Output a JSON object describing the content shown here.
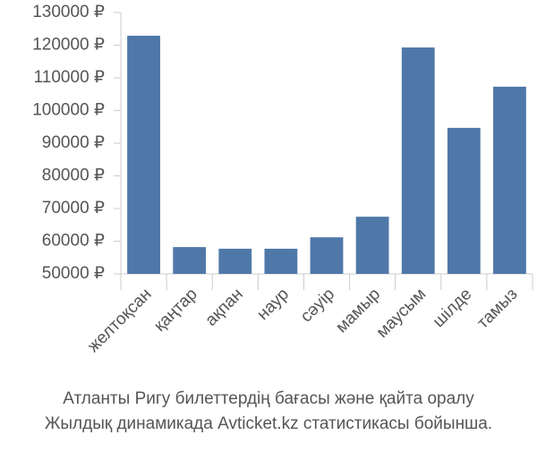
{
  "chart_data": {
    "type": "bar",
    "title": "Атланты Ригу билеттердің бағасы және қайта оралу",
    "subtitle": "Жылдық динамикада Avticket.kz статистикасы бойынша.",
    "categories": [
      "желтоқсан",
      "қаңтар",
      "ақпан",
      "наур",
      "сәуір",
      "мамыр",
      "маусым",
      "шілде",
      "тамыз"
    ],
    "values": [
      122900,
      58200,
      57700,
      57700,
      61200,
      67500,
      119300,
      94700,
      107300
    ],
    "color": "#4f78a8",
    "ylim": [
      50000,
      130000
    ],
    "yticks": [
      {
        "value": 50000,
        "label": "50000 ₽"
      },
      {
        "value": 60000,
        "label": "60000 ₽"
      },
      {
        "value": 70000,
        "label": "70000 ₽"
      },
      {
        "value": 80000,
        "label": "80000 ₽"
      },
      {
        "value": 90000,
        "label": "90000 ₽"
      },
      {
        "value": 100000,
        "label": "100000 ₽"
      },
      {
        "value": 110000,
        "label": "110000 ₽"
      },
      {
        "value": 120000,
        "label": "120000 ₽"
      },
      {
        "value": 130000,
        "label": "130000 ₽"
      }
    ],
    "grid": false
  }
}
